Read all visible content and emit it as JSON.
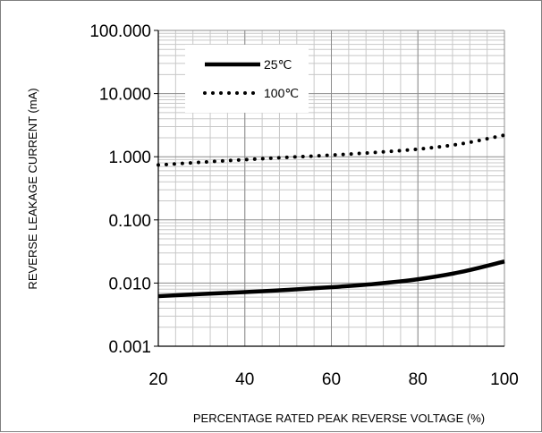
{
  "chart_data": {
    "type": "line",
    "title": "",
    "xlabel": "PERCENTAGE RATED PEAK REVERSE VOLTAGE (%)",
    "ylabel": "REVERSE LEAKAGE CURRENT (mA)",
    "xlim": [
      20,
      100
    ],
    "ylim": [
      0.001,
      100
    ],
    "yscale": "log",
    "grid": true,
    "legend": "top-left",
    "x_ticks": [
      "20",
      "40",
      "60",
      "80",
      "100"
    ],
    "y_ticks": [
      "0.001",
      "0.010",
      "0.100",
      "1.000",
      "10.000",
      "100.000"
    ],
    "series": [
      {
        "name": "25℃",
        "style": "solid",
        "color": "#000000",
        "x": [
          20,
          30,
          40,
          50,
          60,
          70,
          80,
          90,
          100
        ],
        "y": [
          0.0062,
          0.0067,
          0.0072,
          0.0078,
          0.0086,
          0.0097,
          0.0115,
          0.015,
          0.022
        ]
      },
      {
        "name": "100℃",
        "style": "dotted",
        "color": "#000000",
        "x": [
          20,
          30,
          40,
          50,
          60,
          70,
          80,
          90,
          100
        ],
        "y": [
          0.74,
          0.82,
          0.9,
          0.98,
          1.06,
          1.17,
          1.32,
          1.6,
          2.2
        ]
      }
    ]
  }
}
